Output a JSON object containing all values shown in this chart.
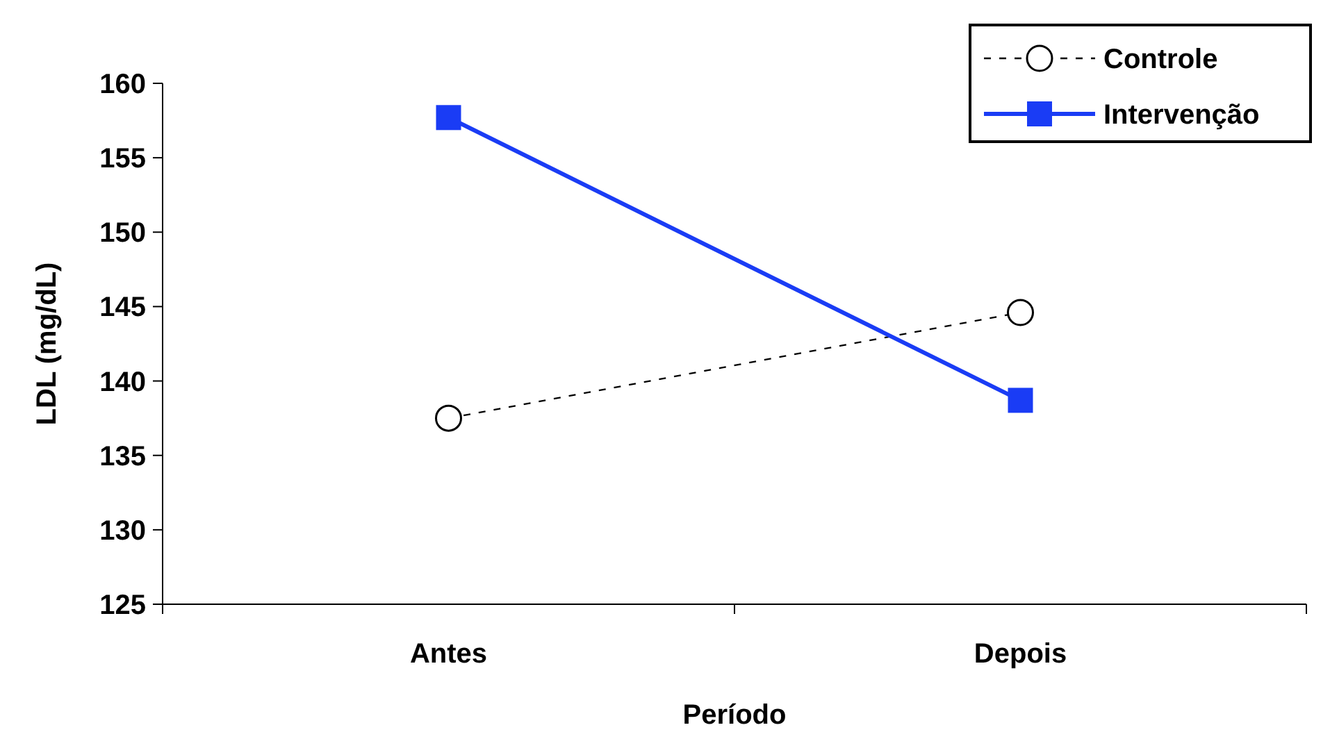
{
  "chart_data": {
    "type": "line",
    "xlabel": "Período",
    "ylabel": "LDL (mg/dL)",
    "categories": [
      "Antes",
      "Depois"
    ],
    "ylim": [
      125,
      160
    ],
    "yticks": [
      125,
      130,
      135,
      140,
      145,
      150,
      155,
      160
    ],
    "grid": false,
    "legend": "top right",
    "series": [
      {
        "name": "Controle",
        "color": "#000000",
        "values": [
          137.5,
          144.6
        ],
        "marker": "circle",
        "line_style": "dashed"
      },
      {
        "name": "Intervenção",
        "color": "#1a3cf5",
        "values": [
          157.7,
          138.7
        ],
        "marker": "square",
        "line_style": "solid"
      }
    ]
  }
}
